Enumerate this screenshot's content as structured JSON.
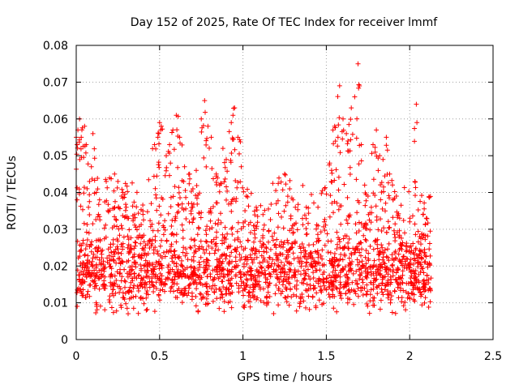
{
  "chart_data": {
    "type": "scatter",
    "title": "Day 152 of 2025, Rate Of TEC Index for receiver lmmf",
    "xlabel": "GPS time / hours",
    "ylabel": "ROTI / TECUs",
    "xlim": [
      0,
      2.5
    ],
    "ylim": [
      0,
      0.08
    ],
    "xticks": [
      0,
      0.5,
      1,
      1.5,
      2,
      2.5
    ],
    "xtick_labels": [
      "0",
      "0.5",
      "1",
      "1.5",
      "2",
      "2.5"
    ],
    "yticks": [
      0,
      0.01,
      0.02,
      0.03,
      0.04,
      0.05,
      0.06,
      0.07,
      0.08
    ],
    "ytick_labels": [
      "0",
      "0.01",
      "0.02",
      "0.03",
      "0.04",
      "0.05",
      "0.06",
      "0.07",
      "0.08"
    ],
    "grid": true,
    "marker": "+",
    "color": "#ff0000",
    "series": [
      {
        "name": "ROTI",
        "x_range": [
          0.0,
          2.13
        ],
        "count": 2400,
        "bands": [
          {
            "x0": 0.0,
            "x1": 2.13,
            "y_center": 0.017,
            "y_spread": 0.006,
            "share": 0.62
          },
          {
            "x0": 0.0,
            "x1": 2.13,
            "y_center": 0.026,
            "y_spread": 0.004,
            "share": 0.15
          }
        ],
        "outliers": [
          [
            0.0,
            0.055
          ],
          [
            0.01,
            0.057
          ],
          [
            0.02,
            0.06
          ],
          [
            0.03,
            0.055
          ],
          [
            0.05,
            0.058
          ],
          [
            0.06,
            0.053
          ],
          [
            0.08,
            0.043
          ],
          [
            0.1,
            0.056
          ],
          [
            0.12,
            0.04
          ],
          [
            0.14,
            0.038
          ],
          [
            0.18,
            0.043
          ],
          [
            0.2,
            0.044
          ],
          [
            0.23,
            0.045
          ],
          [
            0.25,
            0.043
          ],
          [
            0.28,
            0.04
          ],
          [
            0.3,
            0.036
          ],
          [
            0.35,
            0.034
          ],
          [
            0.4,
            0.035
          ],
          [
            0.45,
            0.037
          ],
          [
            0.47,
            0.053
          ],
          [
            0.49,
            0.055
          ],
          [
            0.5,
            0.059
          ],
          [
            0.51,
            0.058
          ],
          [
            0.54,
            0.05
          ],
          [
            0.56,
            0.053
          ],
          [
            0.58,
            0.057
          ],
          [
            0.6,
            0.061
          ],
          [
            0.62,
            0.055
          ],
          [
            0.65,
            0.047
          ],
          [
            0.68,
            0.045
          ],
          [
            0.7,
            0.041
          ],
          [
            0.72,
            0.046
          ],
          [
            0.75,
            0.06
          ],
          [
            0.77,
            0.065
          ],
          [
            0.79,
            0.058
          ],
          [
            0.81,
            0.055
          ],
          [
            0.84,
            0.045
          ],
          [
            0.86,
            0.042
          ],
          [
            0.88,
            0.052
          ],
          [
            0.9,
            0.049
          ],
          [
            0.93,
            0.059
          ],
          [
            0.94,
            0.061
          ],
          [
            0.95,
            0.063
          ],
          [
            0.97,
            0.055
          ],
          [
            0.99,
            0.047
          ],
          [
            1.02,
            0.039
          ],
          [
            1.08,
            0.036
          ],
          [
            1.12,
            0.034
          ],
          [
            1.2,
            0.037
          ],
          [
            1.25,
            0.045
          ],
          [
            1.28,
            0.041
          ],
          [
            1.3,
            0.038
          ],
          [
            1.38,
            0.036
          ],
          [
            1.45,
            0.036
          ],
          [
            1.49,
            0.041
          ],
          [
            1.52,
            0.048
          ],
          [
            1.54,
            0.057
          ],
          [
            1.55,
            0.058
          ],
          [
            1.57,
            0.055
          ],
          [
            1.58,
            0.069
          ],
          [
            1.6,
            0.06
          ],
          [
            1.62,
            0.056
          ],
          [
            1.63,
            0.054
          ],
          [
            1.65,
            0.063
          ],
          [
            1.67,
            0.066
          ],
          [
            1.69,
            0.075
          ],
          [
            1.71,
            0.053
          ],
          [
            1.73,
            0.042
          ],
          [
            1.75,
            0.039
          ],
          [
            1.77,
            0.036
          ],
          [
            1.78,
            0.053
          ],
          [
            1.8,
            0.057
          ],
          [
            1.82,
            0.05
          ],
          [
            1.84,
            0.049
          ],
          [
            1.86,
            0.055
          ],
          [
            1.88,
            0.045
          ],
          [
            1.9,
            0.038
          ],
          [
            1.92,
            0.039
          ],
          [
            1.94,
            0.033
          ],
          [
            1.97,
            0.029
          ],
          [
            2.0,
            0.032
          ],
          [
            2.04,
            0.064
          ],
          [
            2.06,
            0.028
          ],
          [
            2.08,
            0.034
          ],
          [
            2.1,
            0.033
          ]
        ]
      }
    ]
  }
}
